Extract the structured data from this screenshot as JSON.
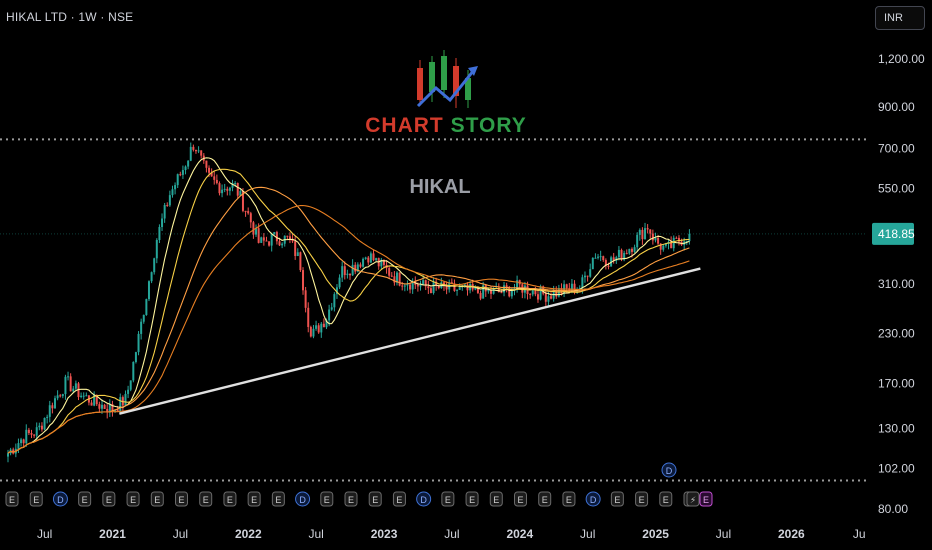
{
  "symbol_title": "HIKAL LTD · 1W · NSE",
  "currency": "INR",
  "logo": {
    "word1": "CHART",
    "word2": "STORY"
  },
  "watermark": "HIKAL",
  "colors": {
    "background": "#000000",
    "up": "#26a69a",
    "down": "#ef5350",
    "ma_fast": "#fff59d",
    "ma_mid": "#f7d046",
    "ma_slow": "#ff9f43",
    "ma_slowest": "#e67e22",
    "trendline": "#e0e0e0",
    "price_label": "#26a69a"
  },
  "event_markers": {
    "labels": [
      "E",
      "E",
      "D",
      "E",
      "E",
      "E",
      "E",
      "E",
      "E",
      "E",
      "E",
      "E",
      "D",
      "E",
      "E",
      "E",
      "E",
      "D",
      "E",
      "E",
      "E",
      "E",
      "E",
      "E",
      "D",
      "E",
      "E",
      "E",
      "E"
    ],
    "dividend_above": "D",
    "last_labels": [
      "⚡",
      "E"
    ]
  },
  "chart_data": {
    "type": "candlestick",
    "title": "HIKAL",
    "y_scale": "log",
    "ylim": [
      75,
      1350
    ],
    "y_ticks": [
      "1,200.00",
      "900.00",
      "700.00",
      "550.00",
      "418.85",
      "310.00",
      "230.00",
      "170.00",
      "130.00",
      "102.00",
      "80.00"
    ],
    "y_tick_values": [
      1200,
      900,
      700,
      550,
      418.85,
      310,
      230,
      170,
      130,
      102,
      80
    ],
    "last_price": 418.85,
    "x_ticks": [
      "Jul",
      "2021",
      "Jul",
      "2022",
      "Jul",
      "2023",
      "Jul",
      "2024",
      "Jul",
      "2025",
      "Jul",
      "2026",
      "Ju"
    ],
    "x_tick_times": [
      2020.5,
      2021.0,
      2021.5,
      2022.0,
      2022.5,
      2023.0,
      2023.5,
      2024.0,
      2024.5,
      2025.0,
      2025.5,
      2026.0,
      2026.5
    ],
    "price_path_anchors": [
      [
        2020.23,
        112
      ],
      [
        2020.35,
        124
      ],
      [
        2020.45,
        128
      ],
      [
        2020.55,
        150
      ],
      [
        2020.66,
        172
      ],
      [
        2020.78,
        158
      ],
      [
        2020.9,
        150
      ],
      [
        2021.0,
        146
      ],
      [
        2021.1,
        155
      ],
      [
        2021.2,
        232
      ],
      [
        2021.32,
        400
      ],
      [
        2021.42,
        530
      ],
      [
        2021.52,
        620
      ],
      [
        2021.6,
        725
      ],
      [
        2021.7,
        590
      ],
      [
        2021.8,
        555
      ],
      [
        2021.9,
        560
      ],
      [
        2022.0,
        470
      ],
      [
        2022.08,
        395
      ],
      [
        2022.2,
        410
      ],
      [
        2022.3,
        405
      ],
      [
        2022.38,
        355
      ],
      [
        2022.46,
        225
      ],
      [
        2022.58,
        255
      ],
      [
        2022.68,
        335
      ],
      [
        2022.78,
        345
      ],
      [
        2022.88,
        370
      ],
      [
        2022.98,
        345
      ],
      [
        2023.1,
        320
      ],
      [
        2023.3,
        305
      ],
      [
        2023.5,
        300
      ],
      [
        2023.7,
        295
      ],
      [
        2023.85,
        295
      ],
      [
        2024.0,
        305
      ],
      [
        2024.2,
        290
      ],
      [
        2024.32,
        298
      ],
      [
        2024.45,
        305
      ],
      [
        2024.55,
        372
      ],
      [
        2024.68,
        355
      ],
      [
        2024.82,
        390
      ],
      [
        2024.94,
        440
      ],
      [
        2025.0,
        400
      ],
      [
        2025.08,
        380
      ],
      [
        2025.18,
        405
      ],
      [
        2025.25,
        418.85
      ]
    ],
    "trendline": {
      "start": [
        2021.05,
        142
      ],
      "end": [
        2025.33,
        340
      ]
    },
    "horizontal_levels": [
      740,
      95
    ],
    "moving_averages": [
      "fast",
      "mid",
      "slow",
      "slowest"
    ]
  }
}
